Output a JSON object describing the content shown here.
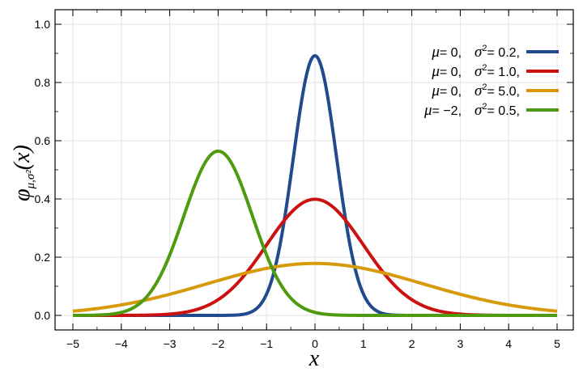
{
  "chart_data": {
    "type": "line",
    "xlabel": "x",
    "ylabel": "φμ,σ²(x)",
    "ylabel_parts": {
      "phi": "φ",
      "sub": "μ,σ²",
      "arg": "(x)"
    },
    "xlim": [
      -5,
      5
    ],
    "ylim": [
      0,
      1.0
    ],
    "xticks": [
      "−5",
      "−4",
      "−3",
      "−2",
      "−1",
      "0",
      "1",
      "2",
      "3",
      "4",
      "5"
    ],
    "yticks": [
      "0.0",
      "0.2",
      "0.4",
      "0.6",
      "0.8",
      "1.0"
    ],
    "grid": true,
    "legend_position": "top-right",
    "series": [
      {
        "name": "μ = 0, σ² = 0.2,",
        "mu_label": "μ",
        "mu_value": "= 0,",
        "sigma_label": "σ",
        "sigma_value": "= 0.2,",
        "mu": 0,
        "variance": 0.2,
        "color": "#224b8d"
      },
      {
        "name": "μ = 0, σ² = 1.0,",
        "mu_label": "μ",
        "mu_value": "= 0,",
        "sigma_label": "σ",
        "sigma_value": "= 1.0,",
        "mu": 0,
        "variance": 1.0,
        "color": "#cc1111"
      },
      {
        "name": "μ = 0, σ² = 5.0,",
        "mu_label": "μ",
        "mu_value": "= 0,",
        "sigma_label": "σ",
        "sigma_value": "= 5.0,",
        "mu": 0,
        "variance": 5.0,
        "color": "#d69a0a"
      },
      {
        "name": "μ = −2, σ² = 0.5,",
        "mu_label": "μ",
        "mu_value": "= −2,",
        "sigma_label": "σ",
        "sigma_value": "= 0.5,",
        "mu": -2,
        "variance": 0.5,
        "color": "#4e9a11"
      }
    ]
  }
}
